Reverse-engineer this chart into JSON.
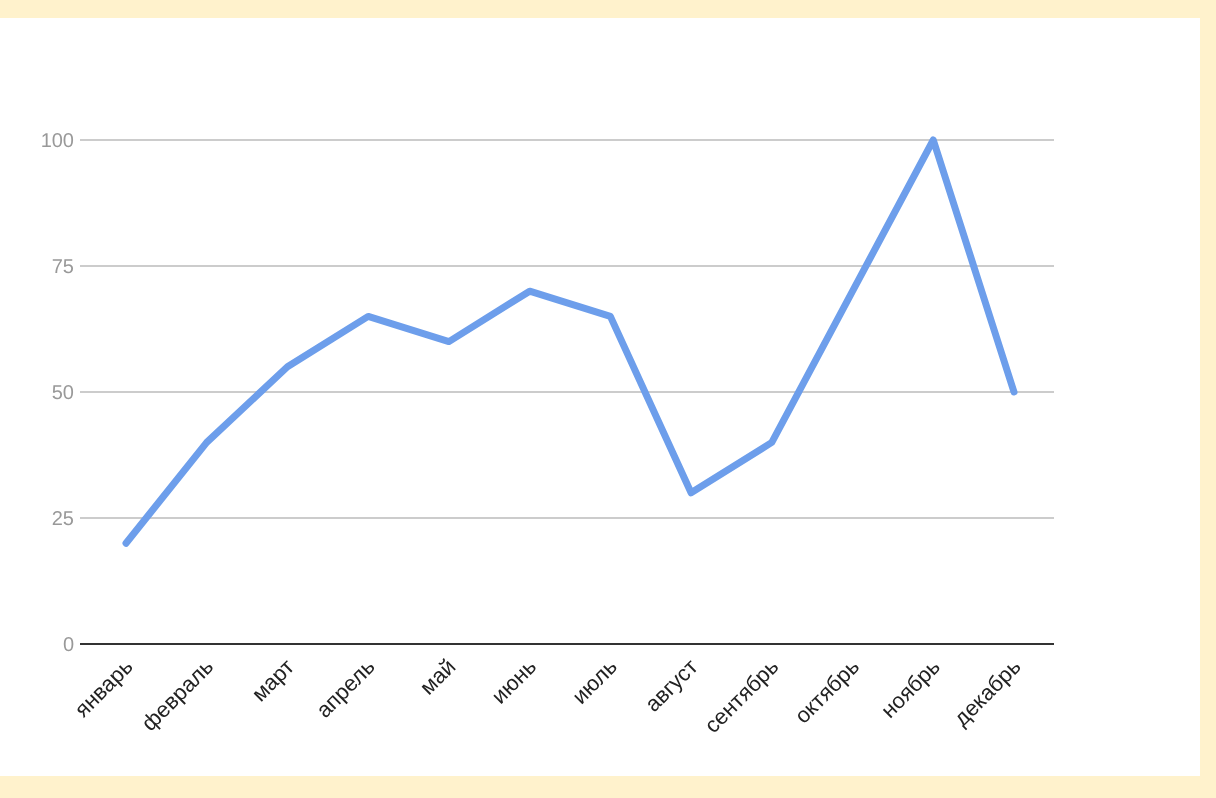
{
  "chart_data": {
    "type": "line",
    "categories": [
      "январь",
      "февраль",
      "март",
      "апрель",
      "май",
      "июнь",
      "июль",
      "август",
      "сентябрь",
      "октябрь",
      "ноябрь",
      "декабрь"
    ],
    "series": [
      {
        "color": "#6d9eeb",
        "values": [
          20,
          40,
          55,
          65,
          60,
          70,
          65,
          30,
          40,
          70,
          100,
          50
        ]
      }
    ],
    "ylim": [
      0,
      100
    ],
    "yticks": [
      0,
      25,
      50,
      75,
      100
    ],
    "grid": "y",
    "marker": "none",
    "line_style": "solid"
  }
}
